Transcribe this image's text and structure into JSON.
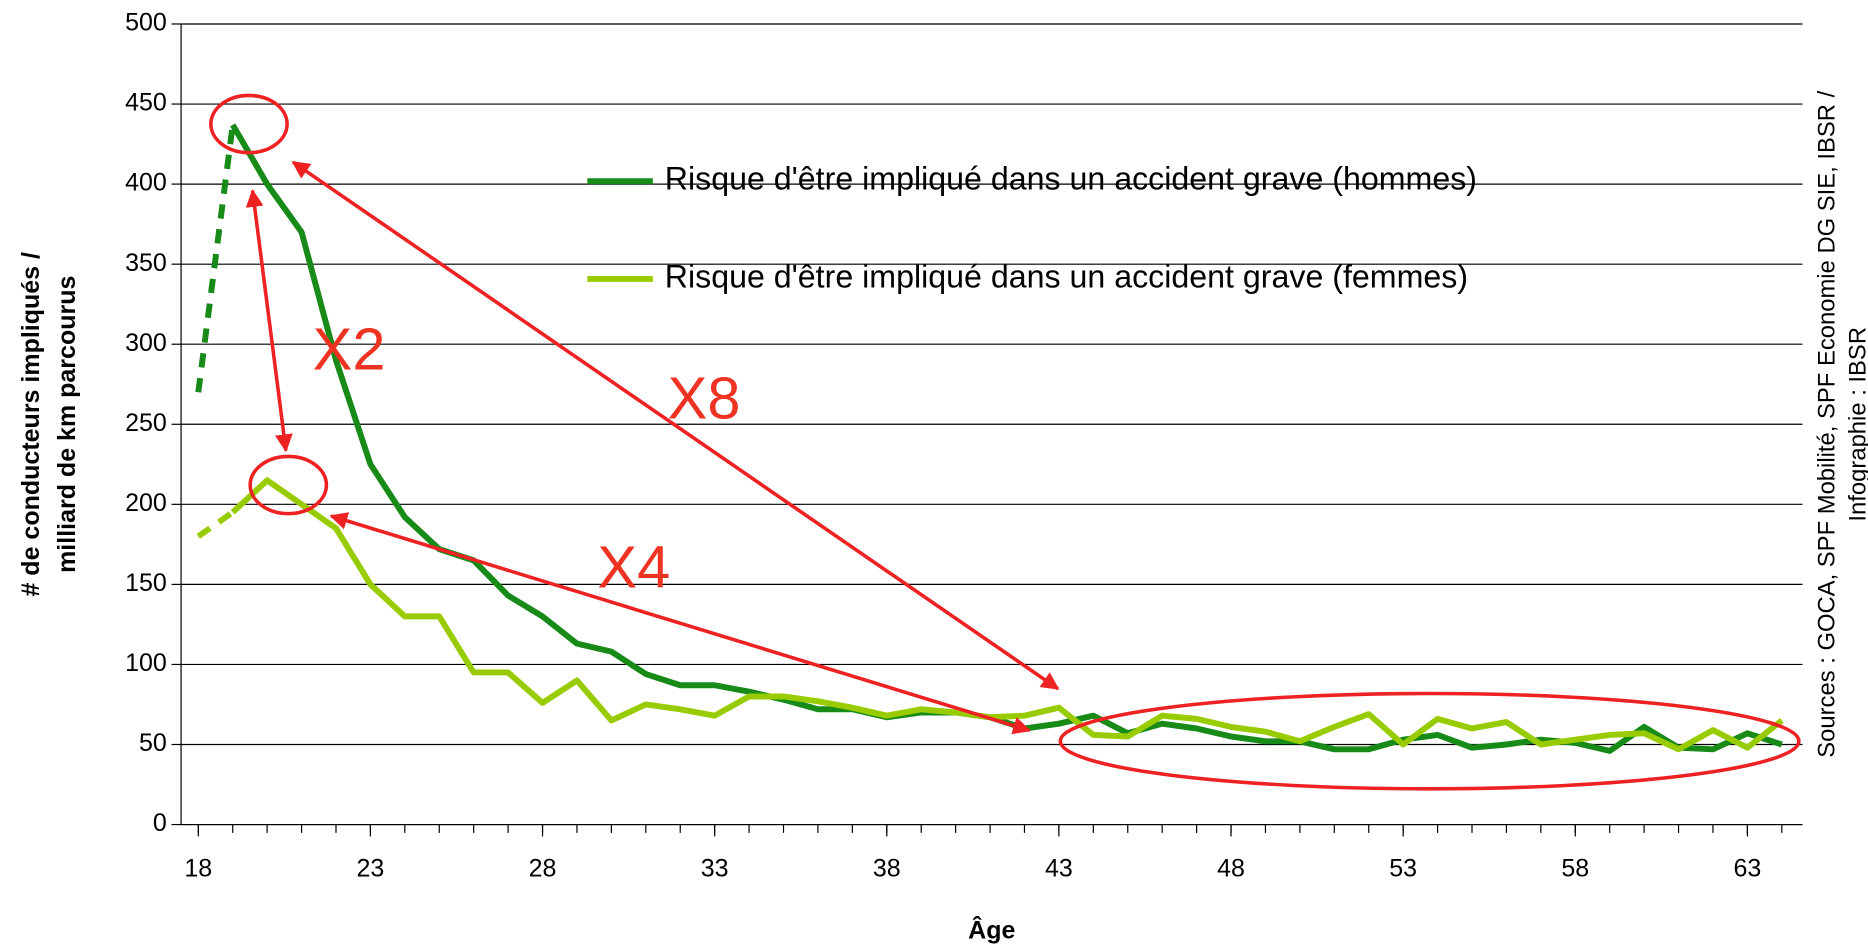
{
  "chart_data": {
    "type": "line",
    "xlabel": "Âge",
    "ylabel": [
      "# de conducteurs impliqués /",
      "milliard de km parcourus"
    ],
    "source": [
      "Sources : GOCA, SPF Mobilité, SPF Economie DG SIE, IBSR /",
      "Infographie : IBSR"
    ],
    "annotations": [
      "X2",
      "X8",
      "X4"
    ],
    "x": [
      18,
      19,
      20,
      21,
      22,
      23,
      24,
      25,
      26,
      27,
      28,
      29,
      30,
      31,
      32,
      33,
      34,
      35,
      36,
      37,
      38,
      39,
      40,
      41,
      42,
      43,
      44,
      45,
      46,
      47,
      48,
      49,
      50,
      51,
      52,
      53,
      54,
      55,
      56,
      57,
      58,
      59,
      60,
      61,
      62,
      63,
      64
    ],
    "series": [
      {
        "name": "Risque d'être impliqué dans un accident grave (hommes)",
        "color": "#178a17",
        "values": [
          270,
          437,
          400,
          370,
          290,
          225,
          192,
          172,
          165,
          143,
          130,
          113,
          108,
          94,
          87,
          87,
          83,
          78,
          72,
          72,
          67,
          70,
          70,
          67,
          60,
          63,
          68,
          57,
          63,
          60,
          55,
          52,
          52,
          47,
          47,
          53,
          56,
          48,
          50,
          53,
          51,
          46,
          61,
          48,
          47,
          57,
          50
        ]
      },
      {
        "name": "Risque d'être impliqué dans un accident grave (femmes)",
        "color": "#99cc00",
        "values": [
          180,
          195,
          215,
          200,
          185,
          150,
          130,
          130,
          95,
          95,
          76,
          90,
          65,
          75,
          72,
          68,
          80,
          80,
          77,
          73,
          68,
          72,
          70,
          67,
          68,
          73,
          56,
          55,
          68,
          66,
          61,
          58,
          52,
          61,
          69,
          50,
          66,
          60,
          64,
          50,
          53,
          56,
          57,
          47,
          59,
          48,
          65
        ]
      }
    ],
    "xlim": [
      17.5,
      64.6
    ],
    "xticks": [
      18,
      23,
      28,
      33,
      38,
      43,
      48,
      53,
      58,
      63
    ],
    "ylim": [
      0,
      500
    ],
    "yticks": [
      0,
      50,
      100,
      150,
      200,
      250,
      300,
      350,
      400,
      450,
      500
    ],
    "grid": true,
    "legend": "top-right"
  }
}
